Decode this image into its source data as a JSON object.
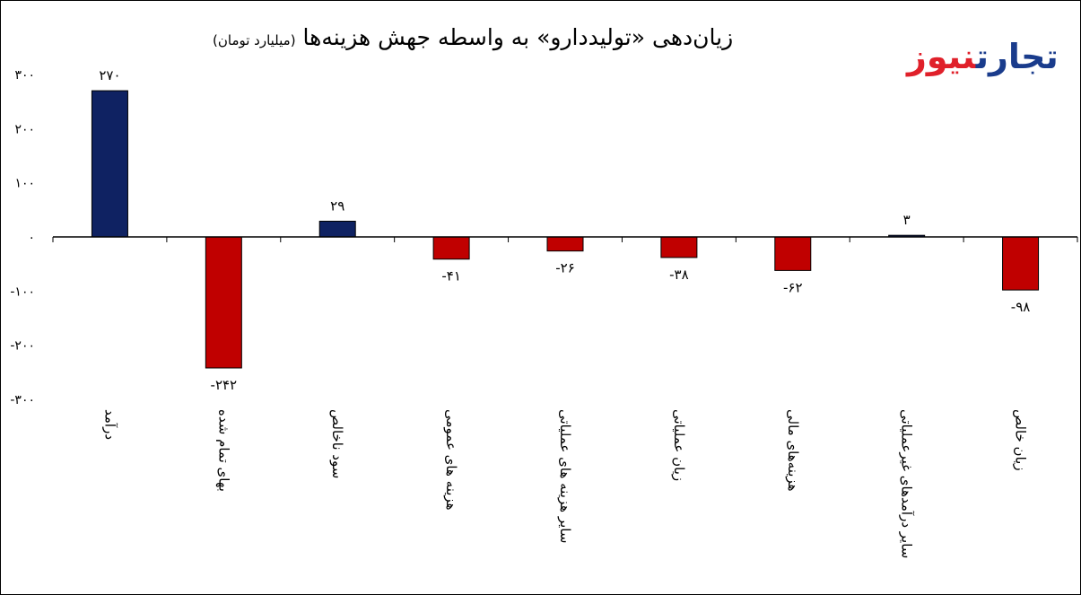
{
  "chart_data": {
    "type": "bar",
    "title": "زیان‌دهی «تولیددارو» به واسطه جهش هزینه‌ها",
    "unit": "(میلیارد تومان)",
    "categories": [
      "درآمد",
      "بهای تمام شده",
      "سود ناخالص",
      "هزینه های عمومی",
      "سایر هزینه های عملیاتی",
      "زیان عملیاتی",
      "هزینه‌های مالی",
      "سایر درآمدهای غیرعملیاتی",
      "زیان خالص"
    ],
    "values": [
      270,
      -242,
      29,
      -41,
      -26,
      -38,
      -62,
      3,
      -98
    ],
    "data_labels": [
      "۲۷۰",
      "-۲۴۲",
      "۲۹",
      "-۴۱",
      "-۲۶",
      "-۳۸",
      "-۶۲",
      "۳",
      "-۹۸"
    ],
    "ylim": [
      -300,
      300
    ],
    "yticks": [
      300,
      200,
      100,
      0,
      -100,
      -200,
      -300
    ],
    "ytick_labels": [
      "۳۰۰",
      "۲۰۰",
      "۱۰۰",
      "۰",
      "-۱۰۰",
      "-۲۰۰",
      "-۳۰۰"
    ],
    "grid": false,
    "colors": {
      "positive": "#0f2262",
      "negative": "#c00000"
    }
  },
  "logo": {
    "part1": "تجارت",
    "part2": "نیوز",
    "colors": [
      "#1a3c8c",
      "#e0202a"
    ]
  }
}
